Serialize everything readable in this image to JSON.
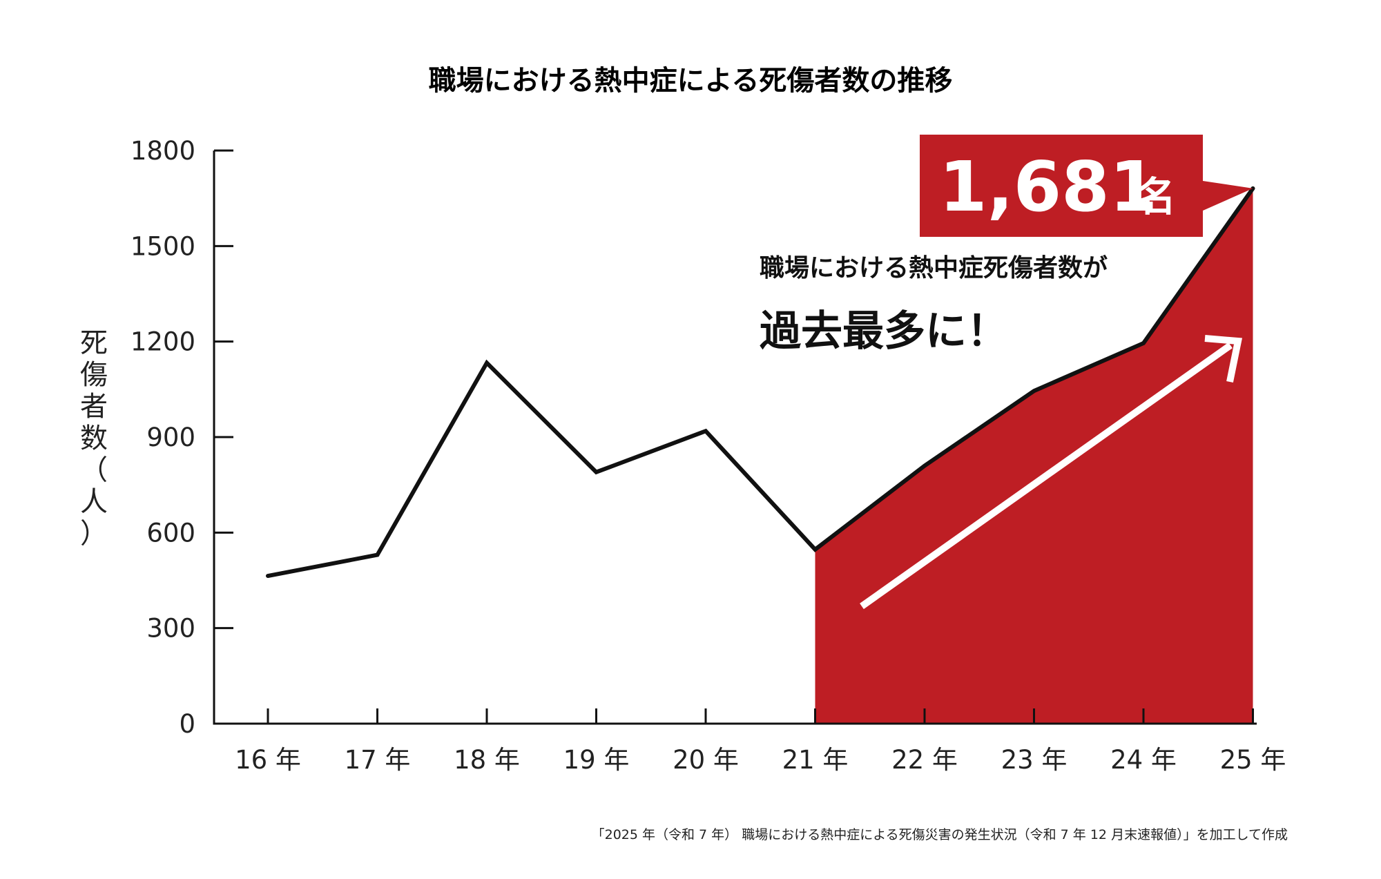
{
  "chart_data": {
    "type": "line",
    "title": "職場における熱中症による死傷者数の推移",
    "ylabel": "死傷者数（人）",
    "ylim": [
      0,
      1800
    ],
    "yticks": [
      0,
      300,
      600,
      900,
      1200,
      1500,
      1800
    ],
    "categories": [
      "16 年",
      "17 年",
      "18 年",
      "19 年",
      "20 年",
      "21 年",
      "22 年",
      "23 年",
      "24 年",
      "25 年"
    ],
    "values": [
      464,
      530,
      1133,
      790,
      919,
      547,
      810,
      1045,
      1195,
      1681
    ],
    "highlight_from_index": 5,
    "highlight_color": "#be1e24",
    "line_color": "#111111",
    "grid": false,
    "callout": {
      "value": "1,681",
      "unit": "名",
      "line1": "職場における熱中症死傷者数が",
      "line2": "過去最多に！"
    },
    "source": "「2025 年（令和 7 年） 職場における熱中症による死傷災害の発生状況（令和 7 年 12 月末速報値）」を加工して作成"
  }
}
